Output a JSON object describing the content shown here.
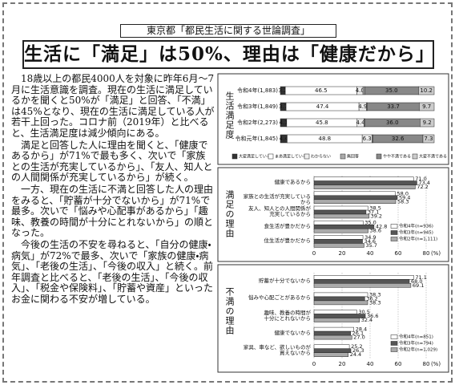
{
  "article": {
    "label": "東京都「都民生活に関する世論調査」",
    "headline": "生活に「満足」は50%、理由は「健康だから」",
    "paragraphs": [
      "18歳以上の都民4000人を対象に昨年6月〜7月に生活意識を調査。現在の生活に満足しているかを聞くと50%が「満足」と回答、「不満」は45%となり、現在の生活に満足している人が若干上回った。コロナ前（2019年）と比べると、生活満足度は減少傾向にある。",
      "満足と回答した人に理由を聞くと、「健康であるから」が71%で最も多く、次いで「家族との生活が充実しているから」、「友人、知人との人間関係が充実しているから」が続く。",
      "一方、現在の生活に不満と回答した人の理由をみると、「貯蓄が十分でないから」が71%で最多。次いで「悩みや心配事があるから」「趣味、教養の時間が十分にとれないから」の順となった。",
      "今後の生活の不安を尋ねると、「自分の健康・病気」が72%で最多、次いで「家族の健康・病気」、「老後の生活」、「今後の収入」と続く。前年調査と比べると、「老後の生活」、「今後の収入」、「税金や保険料」、「貯蓄や資産」といったお金に関わる不安が増している。"
    ]
  },
  "chart_data": [
    {
      "type": "stacked-bar",
      "title": "生活満足度",
      "categories": [
        "令和4年(1,883)",
        "令和3年(1,849)",
        "令和2年(2,273)",
        "令和元年(1,845)"
      ],
      "xlim": [
        0,
        100
      ],
      "series": [
        {
          "name": "大変満足している",
          "color": "#333333",
          "values": [
            3.2,
            3.7,
            4.1,
            4.4
          ]
        },
        {
          "name": "まあ満足している",
          "color": "#ffffff",
          "values": [
            46.5,
            47.4,
            45.8,
            48.8
          ]
        },
        {
          "name": "わからない",
          "color": "#eeeeee",
          "values": [
            4.0,
            4.9,
            4.4,
            6.3
          ],
          "value_labels": [
            "4.0",
            "4.9",
            "4.4",
            "6.3"
          ]
        },
        {
          "name": "無回答",
          "color": "#aaaaaa",
          "values": [
            1.1,
            0.6,
            0.5,
            0.6
          ]
        },
        {
          "name": "やや不満である",
          "color": "#888888",
          "values": [
            35.0,
            33.7,
            36.0,
            32.6
          ],
          "value_labels": [
            "35.0",
            "33.7",
            "36.0",
            "32.6"
          ]
        },
        {
          "name": "大変不満である",
          "color": "#cccccc",
          "values": [
            10.2,
            9.7,
            9.2,
            7.3
          ]
        }
      ]
    },
    {
      "type": "grouped-bar",
      "title": "満足の理由",
      "categories": [
        "健康であるから",
        "家族との生活が充実しているから",
        "友人、知人との人間関係が\n充実しているから",
        "食生活が豊かだから",
        "住生活が豊かだから"
      ],
      "xlim": [
        0,
        80
      ],
      "xticks": [
        0,
        20,
        40,
        60,
        80
      ],
      "unit": "(%)",
      "series": [
        {
          "name": "令和4年(n=936)",
          "color": "#ffffff",
          "values": [
            71.0,
            58.0,
            38.5,
            35.0,
            34.9
          ],
          "value_labels": [
            "71.0",
            "58.0",
            "38.5",
            "35.0",
            "34.9"
          ]
        },
        {
          "name": "令和3年(n=945)",
          "color": "#555555",
          "values": [
            73.4,
            59.4,
            37.1,
            42.8,
            34.6
          ]
        },
        {
          "name": "令和2年(n=1,111)",
          "color": "#aaaaaa",
          "values": [
            72.2,
            58.3,
            39.2,
            38.6,
            35.7
          ]
        }
      ]
    },
    {
      "type": "grouped-bar",
      "title": "不満の理由",
      "categories": [
        "貯蓄が十分でないから",
        "悩みや心配ごとがあるから",
        "趣味、教養の時間が\n十分にとれないから",
        "健康でないから",
        "家具、車など、欲しいものが\n買えないから"
      ],
      "xlim": [
        0,
        80
      ],
      "xticks": [
        0,
        20,
        40,
        60,
        80
      ],
      "unit": "(%)",
      "series": [
        {
          "name": "令和4年(n=851)",
          "color": "#ffffff",
          "values": [
            71.1,
            38.3,
            30.5,
            28.4,
            25.2
          ]
        },
        {
          "name": "令和3年(n=794)",
          "color": "#555555",
          "values": [
            68.0,
            36.2,
            36.6,
            26.1,
            26.3
          ],
          "value_labels": [
            "68.0",
            "36.2",
            "36.6",
            "26.1",
            "26.3"
          ]
        },
        {
          "name": "令和2年(n=1,029)",
          "color": "#aaaaaa",
          "values": [
            69.1,
            38.3,
            32.4,
            27.0,
            24.4
          ],
          "value_labels": [
            "69.1",
            "38.3",
            "32.4",
            "27.0",
            "24.4"
          ]
        }
      ]
    }
  ]
}
